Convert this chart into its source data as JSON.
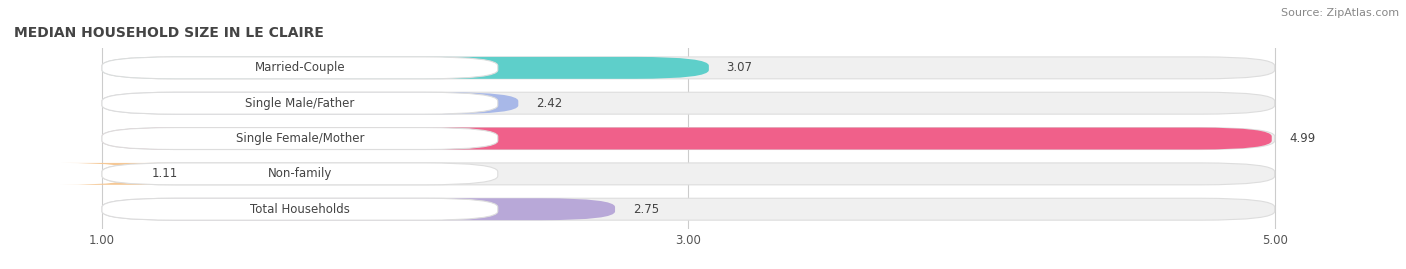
{
  "title": "MEDIAN HOUSEHOLD SIZE IN LE CLAIRE",
  "source": "Source: ZipAtlas.com",
  "categories": [
    "Married-Couple",
    "Single Male/Father",
    "Single Female/Mother",
    "Non-family",
    "Total Households"
  ],
  "values": [
    3.07,
    2.42,
    4.99,
    1.11,
    2.75
  ],
  "bar_colors": [
    "#5ECFCA",
    "#A8B8E8",
    "#F0608A",
    "#F5C896",
    "#B8A8D8"
  ],
  "xmin": 1.0,
  "xmax": 5.0,
  "xlim": [
    0.7,
    5.4
  ],
  "xticks": [
    1.0,
    3.0,
    5.0
  ],
  "xtick_labels": [
    "1.00",
    "3.00",
    "5.00"
  ],
  "background_color": "#ffffff",
  "bar_bg_color": "#f0f0f0",
  "title_fontsize": 10,
  "label_fontsize": 8.5,
  "value_fontsize": 8.5,
  "source_fontsize": 8
}
